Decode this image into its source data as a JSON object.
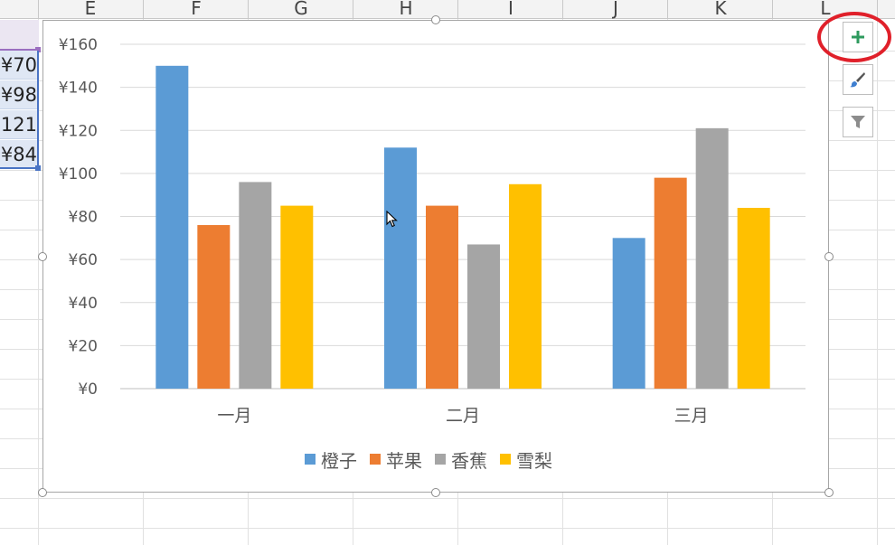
{
  "sheet": {
    "column_headers": [
      "E",
      "F",
      "G",
      "H",
      "I",
      "J",
      "K",
      "L"
    ],
    "left_cells": [
      "¥70",
      "¥98",
      "121",
      "¥84"
    ]
  },
  "chart_data": {
    "type": "bar",
    "categories": [
      "一月",
      "二月",
      "三月"
    ],
    "series": [
      {
        "name": "橙子",
        "color": "#5b9bd5",
        "values": [
          150,
          112,
          70
        ]
      },
      {
        "name": "苹果",
        "color": "#ed7d31",
        "values": [
          76,
          85,
          98
        ]
      },
      {
        "name": "香蕉",
        "color": "#a5a5a5",
        "values": [
          96,
          67,
          121
        ]
      },
      {
        "name": "雪梨",
        "color": "#ffc000",
        "values": [
          85,
          95,
          84
        ]
      }
    ],
    "yticks": [
      "¥0",
      "¥20",
      "¥40",
      "¥60",
      "¥80",
      "¥100",
      "¥120",
      "¥140",
      "¥160"
    ],
    "ylim": [
      0,
      160
    ],
    "grid": true,
    "legend": "bottom"
  },
  "chart_tools": {
    "elements_icon": "plus-icon",
    "styles_icon": "paintbrush-icon",
    "filters_icon": "funnel-icon"
  }
}
